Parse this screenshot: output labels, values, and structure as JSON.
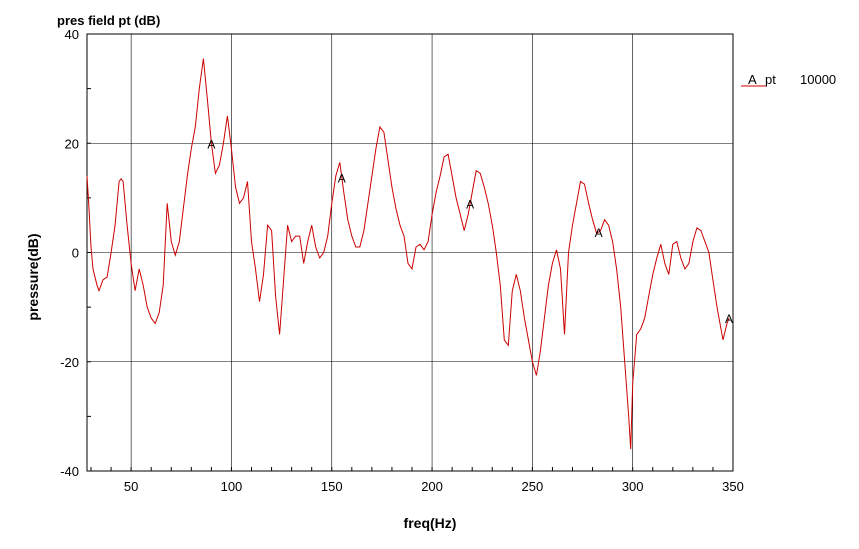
{
  "chart_data": {
    "type": "line",
    "title": "pres field pt (dB)",
    "xlabel": "freq(Hz)",
    "ylabel": "pressure(dB)",
    "xlim": [
      28,
      350
    ],
    "ylim": [
      -40,
      40
    ],
    "x_ticks": [
      50,
      100,
      150,
      200,
      250,
      300,
      350
    ],
    "y_ticks": [
      -40,
      -20,
      0,
      20,
      40
    ],
    "grid": true,
    "legend_position": "right-top",
    "series": [
      {
        "name": "pt",
        "legend_marker": "A",
        "legend_value": "10000",
        "color": "#cc0000",
        "marker_label": "A",
        "marker_x": [
          90,
          155,
          219,
          283,
          348
        ],
        "points": [
          [
            28,
            14
          ],
          [
            29,
            8
          ],
          [
            30,
            1
          ],
          [
            31,
            -3
          ],
          [
            33,
            -6
          ],
          [
            34,
            -7
          ],
          [
            36,
            -5
          ],
          [
            38,
            -4.5
          ],
          [
            40,
            0
          ],
          [
            42,
            5
          ],
          [
            44,
            13
          ],
          [
            45,
            13.5
          ],
          [
            46,
            13
          ],
          [
            48,
            5
          ],
          [
            50,
            -2
          ],
          [
            52,
            -7
          ],
          [
            54,
            -3
          ],
          [
            56,
            -6
          ],
          [
            58,
            -10
          ],
          [
            60,
            -12
          ],
          [
            62,
            -13
          ],
          [
            64,
            -11
          ],
          [
            66,
            -6
          ],
          [
            68,
            9
          ],
          [
            70,
            2
          ],
          [
            72,
            -0.5
          ],
          [
            74,
            2
          ],
          [
            76,
            8
          ],
          [
            78,
            14
          ],
          [
            80,
            19
          ],
          [
            82,
            23
          ],
          [
            84,
            30
          ],
          [
            86,
            35.5
          ],
          [
            88,
            28
          ],
          [
            90,
            20
          ],
          [
            92,
            14.5
          ],
          [
            94,
            16
          ],
          [
            96,
            20
          ],
          [
            98,
            25
          ],
          [
            100,
            19
          ],
          [
            102,
            12
          ],
          [
            104,
            9
          ],
          [
            106,
            10
          ],
          [
            108,
            13
          ],
          [
            110,
            2
          ],
          [
            112,
            -3
          ],
          [
            114,
            -9
          ],
          [
            116,
            -4
          ],
          [
            118,
            5
          ],
          [
            120,
            4
          ],
          [
            122,
            -8
          ],
          [
            124,
            -15
          ],
          [
            126,
            -5
          ],
          [
            128,
            5
          ],
          [
            130,
            2
          ],
          [
            132,
            3
          ],
          [
            134,
            3
          ],
          [
            136,
            -2
          ],
          [
            138,
            2
          ],
          [
            140,
            5
          ],
          [
            142,
            1
          ],
          [
            144,
            -1
          ],
          [
            146,
            0
          ],
          [
            148,
            3
          ],
          [
            150,
            9
          ],
          [
            152,
            14
          ],
          [
            154,
            16.5
          ],
          [
            156,
            11
          ],
          [
            158,
            6
          ],
          [
            160,
            3
          ],
          [
            162,
            1
          ],
          [
            164,
            1
          ],
          [
            166,
            4
          ],
          [
            168,
            9
          ],
          [
            170,
            14
          ],
          [
            172,
            19
          ],
          [
            174,
            23
          ],
          [
            176,
            22
          ],
          [
            178,
            17
          ],
          [
            180,
            12
          ],
          [
            182,
            8
          ],
          [
            184,
            5
          ],
          [
            186,
            3
          ],
          [
            188,
            -2
          ],
          [
            190,
            -3
          ],
          [
            192,
            1
          ],
          [
            194,
            1.5
          ],
          [
            196,
            0.5
          ],
          [
            198,
            2
          ],
          [
            200,
            7
          ],
          [
            202,
            11
          ],
          [
            204,
            14
          ],
          [
            206,
            17.5
          ],
          [
            208,
            18
          ],
          [
            210,
            14
          ],
          [
            212,
            10
          ],
          [
            214,
            7
          ],
          [
            216,
            4
          ],
          [
            218,
            7
          ],
          [
            220,
            11
          ],
          [
            222,
            15
          ],
          [
            224,
            14.5
          ],
          [
            226,
            12
          ],
          [
            228,
            9
          ],
          [
            230,
            5
          ],
          [
            232,
            0
          ],
          [
            234,
            -6
          ],
          [
            236,
            -16
          ],
          [
            238,
            -17
          ],
          [
            240,
            -7
          ],
          [
            242,
            -4
          ],
          [
            244,
            -7
          ],
          [
            246,
            -12
          ],
          [
            248,
            -16
          ],
          [
            250,
            -20
          ],
          [
            252,
            -22.5
          ],
          [
            254,
            -18
          ],
          [
            256,
            -12
          ],
          [
            258,
            -6
          ],
          [
            260,
            -2
          ],
          [
            262,
            0.5
          ],
          [
            264,
            -3
          ],
          [
            266,
            -15
          ],
          [
            268,
            0
          ],
          [
            270,
            5
          ],
          [
            272,
            9
          ],
          [
            274,
            13
          ],
          [
            276,
            12.5
          ],
          [
            278,
            9
          ],
          [
            280,
            6
          ],
          [
            282,
            3.5
          ],
          [
            284,
            4
          ],
          [
            286,
            6
          ],
          [
            288,
            5
          ],
          [
            290,
            2
          ],
          [
            292,
            -3
          ],
          [
            294,
            -10
          ],
          [
            296,
            -20
          ],
          [
            298,
            -30
          ],
          [
            299,
            -36
          ],
          [
            300,
            -24
          ],
          [
            302,
            -15
          ],
          [
            304,
            -14
          ],
          [
            306,
            -12
          ],
          [
            308,
            -8
          ],
          [
            310,
            -4
          ],
          [
            312,
            -1
          ],
          [
            314,
            1.5
          ],
          [
            316,
            -2
          ],
          [
            318,
            -4
          ],
          [
            320,
            1.5
          ],
          [
            322,
            2
          ],
          [
            324,
            -1
          ],
          [
            326,
            -3
          ],
          [
            328,
            -2
          ],
          [
            330,
            2
          ],
          [
            332,
            4.5
          ],
          [
            334,
            4
          ],
          [
            336,
            2
          ],
          [
            338,
            0
          ],
          [
            340,
            -5
          ],
          [
            342,
            -10
          ],
          [
            344,
            -14
          ],
          [
            345,
            -16
          ],
          [
            347,
            -13
          ],
          [
            348,
            -12
          ]
        ]
      }
    ]
  }
}
